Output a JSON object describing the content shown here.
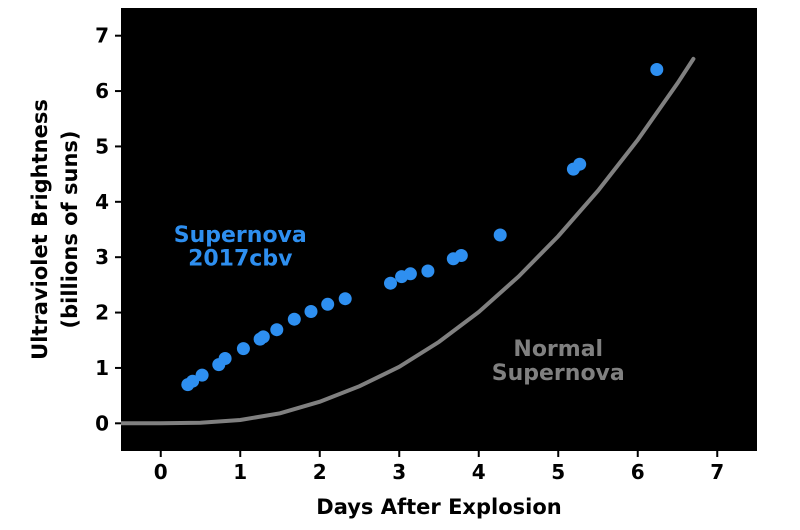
{
  "chart_data": {
    "type": "scatter",
    "xlabel": "Days After Explosion",
    "ylabel_line1": "Ultraviolet Brightness",
    "ylabel_line2": "(billions of suns)",
    "xlim": [
      -0.5,
      7.5
    ],
    "ylim": [
      -0.5,
      7.5
    ],
    "xticks": [
      0,
      1,
      2,
      3,
      4,
      5,
      6,
      7
    ],
    "yticks": [
      0,
      1,
      2,
      3,
      4,
      5,
      6,
      7
    ],
    "grid": false,
    "plot_background": "#000000",
    "series": [
      {
        "name": "Supernova 2017cbv",
        "kind": "scatter",
        "color": "#2e8ff0",
        "x": [
          0.34,
          0.4,
          0.52,
          0.73,
          0.81,
          1.04,
          1.25,
          1.29,
          1.46,
          1.68,
          1.89,
          2.1,
          2.32,
          2.89,
          3.03,
          3.14,
          3.36,
          3.68,
          3.78,
          4.27,
          5.19,
          5.27,
          6.24
        ],
        "y": [
          0.7,
          0.76,
          0.87,
          1.06,
          1.17,
          1.35,
          1.52,
          1.56,
          1.69,
          1.88,
          2.02,
          2.15,
          2.25,
          2.53,
          2.65,
          2.7,
          2.75,
          2.97,
          3.03,
          3.4,
          4.59,
          4.68,
          6.39
        ]
      },
      {
        "name": "Normal Supernova",
        "kind": "line",
        "color": "#808080",
        "x": [
          -0.5,
          0.0,
          0.5,
          1.0,
          1.5,
          2.0,
          2.5,
          3.0,
          3.5,
          4.0,
          4.5,
          5.0,
          5.5,
          6.0,
          6.5,
          6.7
        ],
        "y": [
          0.0,
          0.0,
          0.01,
          0.06,
          0.18,
          0.39,
          0.67,
          1.02,
          1.47,
          2.01,
          2.65,
          3.38,
          4.2,
          5.12,
          6.14,
          6.58
        ]
      }
    ],
    "annotations": [
      {
        "line1": "Supernova",
        "line2": "2017cbv",
        "color": "#2e8ff0",
        "x": 1.0,
        "y": 3.27,
        "y2": 2.85
      },
      {
        "line1": "Normal",
        "line2": "Supernova",
        "color": "#808080",
        "x": 5.0,
        "y": 1.22,
        "y2": 0.78
      }
    ]
  }
}
